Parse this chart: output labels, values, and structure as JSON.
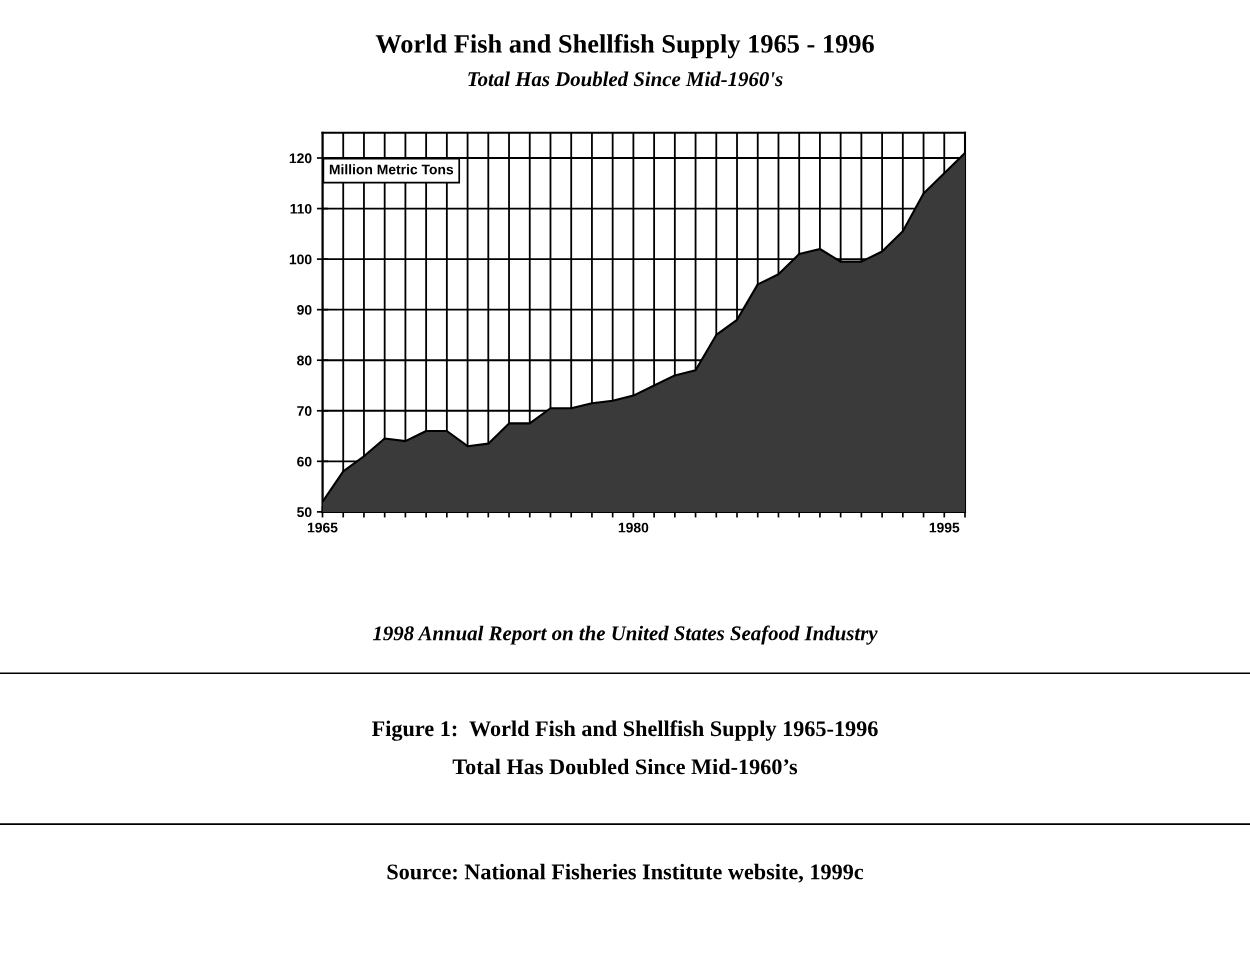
{
  "chart_data": {
    "type": "area",
    "title": "World Fish and Shellfish Supply 1965 - 1996",
    "subtitle": "Total Has Doubled Since Mid-1960's",
    "ylabel": "Million Metric Tons",
    "x": [
      1965,
      1966,
      1967,
      1968,
      1969,
      1970,
      1971,
      1972,
      1973,
      1974,
      1975,
      1976,
      1977,
      1978,
      1979,
      1980,
      1981,
      1982,
      1983,
      1984,
      1985,
      1986,
      1987,
      1988,
      1989,
      1990,
      1991,
      1992,
      1993,
      1994,
      1995,
      1996
    ],
    "values": [
      52,
      58,
      61,
      64.5,
      64,
      66,
      66,
      63,
      63.5,
      67.5,
      67.5,
      70.5,
      70.5,
      71.5,
      72,
      73,
      75,
      77,
      78,
      85,
      88,
      95,
      97,
      101,
      102,
      99.5,
      99.5,
      101.5,
      105.5,
      113,
      117,
      121
    ],
    "color": "#3a3a3a",
    "xlim": [
      1965,
      1996
    ],
    "xticks": [
      1965,
      {
        "value": 1966,
        "label": null
      },
      {
        "value": 1967,
        "label": null
      },
      {
        "value": 1968,
        "label": null
      },
      {
        "value": 1969,
        "label": null
      },
      {
        "value": 1970,
        "label": null
      },
      {
        "value": 1971,
        "label": null
      },
      {
        "value": 1972,
        "label": null
      },
      {
        "value": 1973,
        "label": null
      },
      {
        "value": 1974,
        "label": null
      },
      {
        "value": 1975,
        "label": null
      },
      {
        "value": 1976,
        "label": null
      },
      {
        "value": 1977,
        "label": null
      },
      {
        "value": 1978,
        "label": null
      },
      {
        "value": 1979,
        "label": null
      },
      1980,
      {
        "value": 1981,
        "label": null
      },
      {
        "value": 1982,
        "label": null
      },
      {
        "value": 1983,
        "label": null
      },
      {
        "value": 1984,
        "label": null
      },
      {
        "value": 1985,
        "label": null
      },
      {
        "value": 1986,
        "label": null
      },
      {
        "value": 1987,
        "label": null
      },
      {
        "value": 1988,
        "label": null
      },
      {
        "value": 1989,
        "label": null
      },
      {
        "value": 1990,
        "label": null
      },
      {
        "value": 1991,
        "label": null
      },
      {
        "value": 1992,
        "label": null
      },
      {
        "value": 1993,
        "label": null
      },
      {
        "value": 1994,
        "label": null
      },
      1995,
      {
        "value": 1996,
        "label": null
      }
    ],
    "ylim": [
      50,
      125
    ],
    "yticks": [
      50,
      60,
      70,
      80,
      90,
      100,
      110,
      120
    ],
    "grid": true,
    "annotations": [
      "1998 Annual Report on the United States Seafood Industry",
      "Figure 1:  World Fish and Shellfish Supply 1965-1996",
      "Total Has Doubled Since Mid-1960’s",
      "Source: National Fisheries Institute website, 1999c"
    ]
  }
}
